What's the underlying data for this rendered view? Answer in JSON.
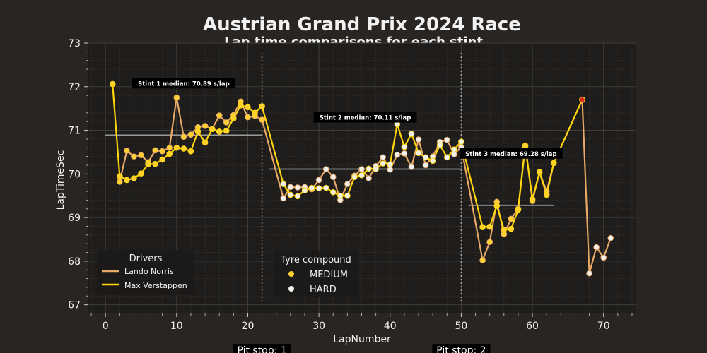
{
  "chart_data": {
    "type": "line",
    "title": "Austrian Grand Prix 2024 Race",
    "subtitle": "Lap time comparisons for each stint",
    "xlabel": "LapNumber",
    "ylabel": "LapTimeSec",
    "xlim": [
      -2.5,
      74.5
    ],
    "ylim": [
      66.8,
      73
    ],
    "xticks": [
      0,
      10,
      20,
      30,
      40,
      50,
      60,
      70
    ],
    "yticks": [
      67,
      68,
      69,
      70,
      71,
      72,
      73
    ],
    "grid": true,
    "series": [
      {
        "name": "Lando Norris",
        "color": "#e8a867",
        "points": [
          [
            2,
            69.82
          ],
          [
            3,
            70.53
          ],
          [
            4,
            70.4
          ],
          [
            5,
            70.43
          ],
          [
            6,
            70.27
          ],
          [
            7,
            70.54
          ],
          [
            8,
            70.52
          ],
          [
            9,
            70.6
          ],
          [
            10,
            71.75
          ],
          [
            11,
            70.85
          ],
          [
            12,
            70.9
          ],
          [
            13,
            71.07
          ],
          [
            14,
            71.1
          ],
          [
            15,
            71.03
          ],
          [
            16,
            71.34
          ],
          [
            17,
            71.18
          ],
          [
            18,
            71.35
          ],
          [
            19,
            71.66
          ],
          [
            20,
            71.3
          ],
          [
            21,
            71.33
          ],
          [
            22,
            71.24
          ],
          [
            25,
            69.44
          ],
          [
            26,
            69.7
          ],
          [
            27,
            69.69
          ],
          [
            28,
            69.7
          ],
          [
            29,
            69.65
          ],
          [
            30,
            69.86
          ],
          [
            31,
            70.11
          ],
          [
            32,
            69.93
          ],
          [
            33,
            69.4
          ],
          [
            34,
            69.77
          ],
          [
            35,
            69.96
          ],
          [
            36,
            70.11
          ],
          [
            37,
            69.9
          ],
          [
            38,
            70.18
          ],
          [
            39,
            70.38
          ],
          [
            40,
            70.1
          ],
          [
            41,
            70.44
          ],
          [
            42,
            70.47
          ],
          [
            43,
            70.16
          ],
          [
            44,
            70.79
          ],
          [
            45,
            70.2
          ],
          [
            46,
            70.4
          ],
          [
            47,
            70.73
          ],
          [
            48,
            70.78
          ],
          [
            49,
            70.45
          ],
          [
            50,
            70.62
          ],
          [
            53,
            68.02
          ],
          [
            54,
            68.44
          ],
          [
            55,
            69.36
          ],
          [
            56,
            68.62
          ],
          [
            57,
            68.97
          ],
          [
            58,
            69.2
          ],
          [
            59,
            70.65
          ],
          [
            60,
            69.38
          ],
          [
            61,
            70.04
          ],
          [
            62,
            69.6
          ],
          [
            63,
            70.25
          ],
          [
            67,
            71.7
          ],
          [
            68,
            67.72
          ],
          [
            69,
            68.32
          ],
          [
            70,
            68.08
          ],
          [
            71,
            68.53
          ]
        ],
        "compounds": [
          "MEDIUM",
          "MEDIUM",
          "MEDIUM",
          "MEDIUM",
          "MEDIUM",
          "MEDIUM",
          "MEDIUM",
          "MEDIUM",
          "MEDIUM",
          "MEDIUM",
          "MEDIUM",
          "MEDIUM",
          "MEDIUM",
          "MEDIUM",
          "MEDIUM",
          "MEDIUM",
          "MEDIUM",
          "MEDIUM",
          "MEDIUM",
          "MEDIUM",
          "MEDIUM",
          "HARD",
          "HARD",
          "HARD",
          "HARD",
          "HARD",
          "HARD",
          "HARD",
          "HARD",
          "HARD",
          "HARD",
          "HARD",
          "HARD",
          "HARD",
          "HARD",
          "HARD",
          "HARD",
          "HARD",
          "HARD",
          "HARD",
          "HARD",
          "HARD",
          "HARD",
          "HARD",
          "HARD",
          "HARD",
          "HARD",
          "MEDIUM",
          "MEDIUM",
          "MEDIUM",
          "MEDIUM",
          "MEDIUM",
          "MEDIUM",
          "MEDIUM",
          "MEDIUM",
          "MEDIUM",
          "MEDIUM",
          "MEDIUM",
          "HARD",
          "HARD",
          "HARD",
          "HARD",
          "HARD"
        ]
      },
      {
        "name": "Max Verstappen",
        "color": "#ffd60a",
        "points": [
          [
            1,
            72.06
          ],
          [
            2,
            69.95
          ],
          [
            3,
            69.86
          ],
          [
            4,
            69.9
          ],
          [
            5,
            70.01
          ],
          [
            6,
            70.22
          ],
          [
            7,
            70.23
          ],
          [
            8,
            70.33
          ],
          [
            9,
            70.46
          ],
          [
            10,
            70.6
          ],
          [
            11,
            70.58
          ],
          [
            12,
            70.52
          ],
          [
            13,
            70.97
          ],
          [
            14,
            70.72
          ],
          [
            15,
            71.03
          ],
          [
            16,
            70.97
          ],
          [
            17,
            70.99
          ],
          [
            18,
            71.27
          ],
          [
            19,
            71.57
          ],
          [
            20,
            71.53
          ],
          [
            21,
            71.4
          ],
          [
            22,
            71.55
          ],
          [
            25,
            69.77
          ],
          [
            26,
            69.52
          ],
          [
            27,
            69.49
          ],
          [
            28,
            69.62
          ],
          [
            29,
            69.68
          ],
          [
            30,
            69.67
          ],
          [
            31,
            69.68
          ],
          [
            32,
            69.58
          ],
          [
            33,
            69.5
          ],
          [
            34,
            69.5
          ],
          [
            35,
            69.93
          ],
          [
            36,
            69.97
          ],
          [
            37,
            70.12
          ],
          [
            38,
            70.11
          ],
          [
            39,
            70.24
          ],
          [
            40,
            70.22
          ],
          [
            41,
            71.14
          ],
          [
            42,
            70.62
          ],
          [
            43,
            70.92
          ],
          [
            44,
            70.48
          ],
          [
            45,
            70.38
          ],
          [
            46,
            70.3
          ],
          [
            47,
            70.66
          ],
          [
            48,
            70.38
          ],
          [
            49,
            70.56
          ],
          [
            50,
            70.74
          ],
          [
            53,
            68.78
          ],
          [
            54,
            68.79
          ],
          [
            55,
            69.27
          ],
          [
            56,
            68.72
          ],
          [
            57,
            68.74
          ],
          [
            58,
            69.18
          ],
          [
            59,
            70.64
          ],
          [
            60,
            69.42
          ],
          [
            61,
            70.04
          ],
          [
            62,
            69.52
          ],
          [
            63,
            70.25
          ],
          [
            67,
            71.7
          ]
        ],
        "compounds": [
          "MEDIUM",
          "MEDIUM",
          "MEDIUM",
          "MEDIUM",
          "MEDIUM",
          "MEDIUM",
          "MEDIUM",
          "MEDIUM",
          "MEDIUM",
          "MEDIUM",
          "MEDIUM",
          "MEDIUM",
          "MEDIUM",
          "MEDIUM",
          "MEDIUM",
          "MEDIUM",
          "MEDIUM",
          "MEDIUM",
          "MEDIUM",
          "MEDIUM",
          "MEDIUM",
          "MEDIUM",
          "HARD",
          "HARD",
          "HARD",
          "HARD",
          "HARD",
          "HARD",
          "HARD",
          "HARD",
          "HARD",
          "HARD",
          "HARD",
          "HARD",
          "HARD",
          "HARD",
          "HARD",
          "HARD",
          "HARD",
          "HARD",
          "HARD",
          "HARD",
          "HARD",
          "HARD",
          "HARD",
          "HARD",
          "HARD",
          "HARD",
          "MEDIUM",
          "MEDIUM",
          "MEDIUM",
          "MEDIUM",
          "MEDIUM",
          "MEDIUM",
          "MEDIUM",
          "MEDIUM",
          "MEDIUM",
          "MEDIUM",
          "MEDIUM",
          "SOFT"
        ]
      }
    ],
    "compound_colors": {
      "MEDIUM": "#ffd12e",
      "HARD": "#f0f0ec",
      "SOFT": "#da291c"
    },
    "stint_medians": [
      {
        "label": "Stint 1 median: 70.89 s/lap",
        "value": 70.89,
        "x_range": [
          0,
          22
        ]
      },
      {
        "label": "Stint 2 median: 70.11 s/lap",
        "value": 70.11,
        "x_range": [
          23,
          50
        ]
      },
      {
        "label": "Stint 3 median: 69.28 s/lap",
        "value": 69.28,
        "x_range": [
          51,
          63
        ]
      }
    ],
    "pit_stops": [
      {
        "label": "Pit stop: 1",
        "lap": 22
      },
      {
        "label": "Pit stop: 2",
        "lap": 50
      }
    ],
    "legend_drivers": {
      "title": "Drivers",
      "position": "lower-left"
    },
    "legend_tyres": {
      "title": "Tyre compound",
      "entries": [
        "MEDIUM",
        "HARD"
      ],
      "position": "lower-center"
    }
  }
}
